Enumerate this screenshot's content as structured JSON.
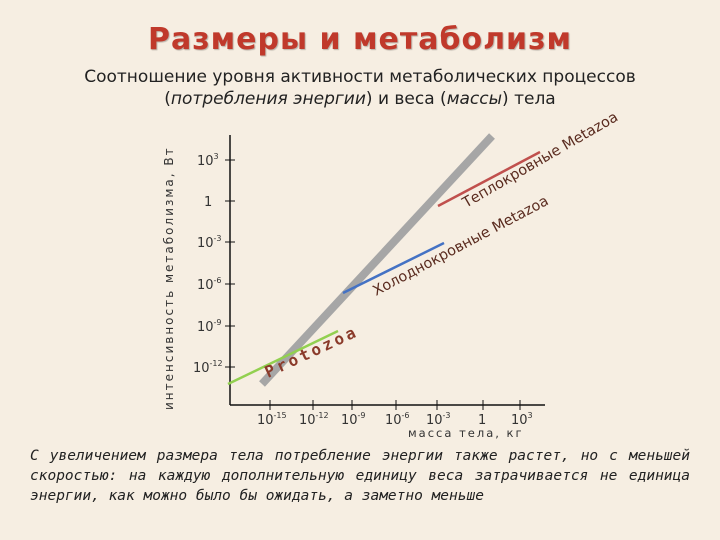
{
  "title": "Размеры и метаболизм",
  "subtitle": {
    "line1": "Соотношение уровня активности метаболических процессов",
    "line2_pre": "(",
    "line2_italic1": "потребления энергии",
    "line2_mid": ") и веса (",
    "line2_italic2": "массы",
    "line2_post": ") тела"
  },
  "ylabel": "интенсивность метаболизма, Вт",
  "xlabel": "масса тела, кг",
  "y_ticks": [
    {
      "base": "10",
      "exp": "3"
    },
    {
      "base": "1",
      "exp": ""
    },
    {
      "base": "10",
      "exp": "-3"
    },
    {
      "base": "10",
      "exp": "-6"
    },
    {
      "base": "10",
      "exp": "-9"
    },
    {
      "base": "10",
      "exp": "-12"
    }
  ],
  "x_ticks": [
    {
      "base": "10",
      "exp": "-15"
    },
    {
      "base": "10",
      "exp": "-12"
    },
    {
      "base": "10",
      "exp": "-9"
    },
    {
      "base": "10",
      "exp": "-6"
    },
    {
      "base": "10",
      "exp": "-3"
    },
    {
      "base": "1",
      "exp": ""
    },
    {
      "base": "10",
      "exp": "3"
    }
  ],
  "labels": {
    "protozoa": "Protozoa",
    "cold": "Холоднокровные Metazoa",
    "warm": "Теплокровные Metazoa"
  },
  "colors": {
    "title": "#c0392b",
    "gray_line": "#a6a6a6",
    "protozoa_line": "#92d050",
    "cold_line": "#4472c4",
    "warm_line": "#c0504d",
    "background": "#f6eee2"
  },
  "caption": "С увеличением размера тела потребление энергии также растет, но с меньшей скоростью: на каждую дополнительную единицу веса затрачивается не единица энергии, как можно было бы ожидать, а заметно меньше"
}
